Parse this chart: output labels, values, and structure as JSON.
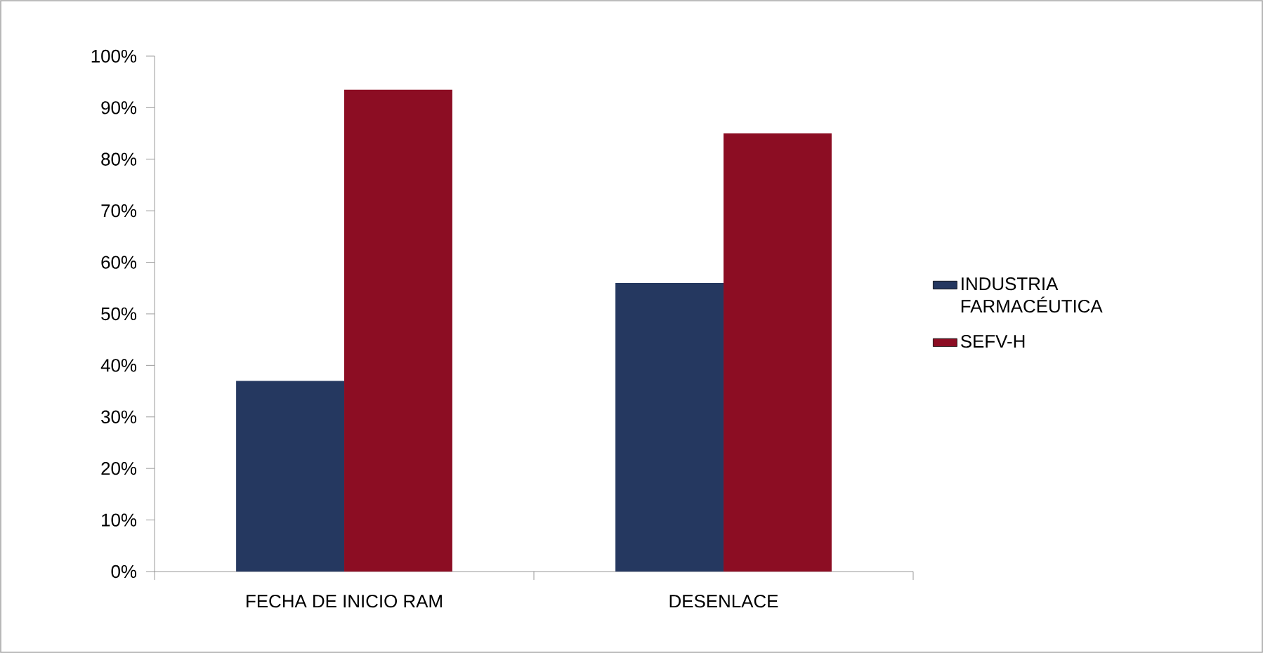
{
  "chart_data": {
    "type": "bar",
    "categories": [
      "FECHA DE INICIO RAM",
      "DESENLACE"
    ],
    "series": [
      {
        "name": "INDUSTRIA FARMACÉUTICA",
        "color": "#253860",
        "values": [
          37,
          56
        ]
      },
      {
        "name": "SEFV-H",
        "color": "#8c0d23",
        "values": [
          93.5,
          85
        ]
      }
    ],
    "ylim": [
      0,
      100
    ],
    "yticks": [
      {
        "value": 0,
        "label": "0%"
      },
      {
        "value": 10,
        "label": "10%"
      },
      {
        "value": 20,
        "label": "20%"
      },
      {
        "value": 30,
        "label": "30%"
      },
      {
        "value": 40,
        "label": "40%"
      },
      {
        "value": 50,
        "label": "50%"
      },
      {
        "value": 60,
        "label": "60%"
      },
      {
        "value": 70,
        "label": "70%"
      },
      {
        "value": 80,
        "label": "80%"
      },
      {
        "value": 90,
        "label": "90%"
      },
      {
        "value": 100,
        "label": "100%"
      }
    ],
    "grid": false,
    "legend": "right"
  }
}
